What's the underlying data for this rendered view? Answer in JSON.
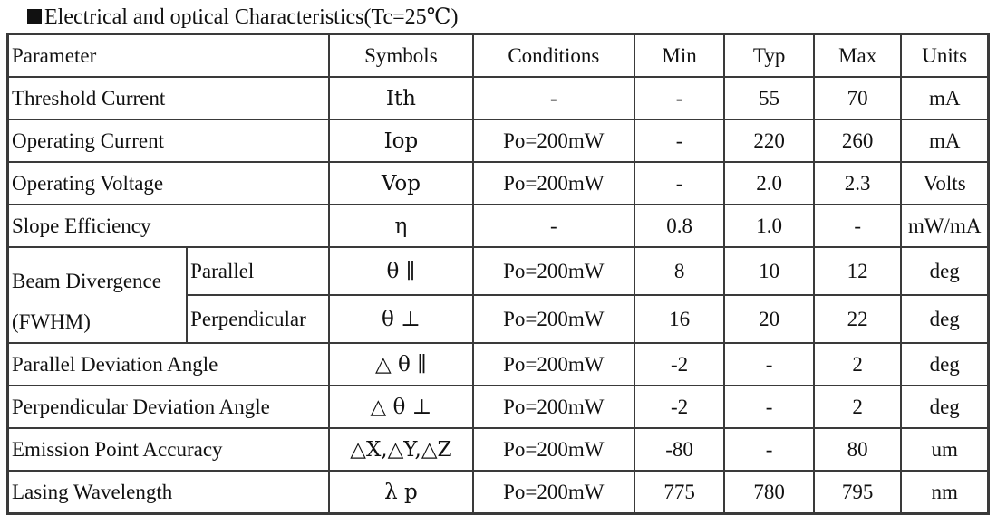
{
  "heading": "Electrical and optical Characteristics(Tc=25℃)",
  "columns": [
    "Parameter",
    "Symbols",
    "Conditions",
    "Min",
    "Typ",
    "Max",
    "Units"
  ],
  "rows": [
    {
      "parameter": "Threshold Current",
      "symbol": "Ith",
      "conditions": "-",
      "min": "-",
      "typ": "55",
      "max": "70",
      "units": "mA"
    },
    {
      "parameter": "Operating Current",
      "symbol": "Iop",
      "conditions": "Po=200mW",
      "min": "-",
      "typ": "220",
      "max": "260",
      "units": "mA"
    },
    {
      "parameter": "Operating Voltage",
      "symbol": "Vop",
      "conditions": "Po=200mW",
      "min": "-",
      "typ": "2.0",
      "max": "2.3",
      "units": "Volts"
    },
    {
      "parameter": "Slope Efficiency",
      "symbol": "η",
      "conditions": "-",
      "min": "0.8",
      "typ": "1.0",
      "max": "-",
      "units": "mW/mA"
    }
  ],
  "beam": {
    "parameter_line1": "Beam Divergence",
    "parameter_line2": "(FWHM)",
    "sub": [
      {
        "label": "Parallel",
        "symbol": "θ ∥",
        "conditions": "Po=200mW",
        "min": "8",
        "typ": "10",
        "max": "12",
        "units": "deg"
      },
      {
        "label": "Perpendicular",
        "symbol": "θ ⊥",
        "conditions": "Po=200mW",
        "min": "16",
        "typ": "20",
        "max": "22",
        "units": "deg"
      }
    ]
  },
  "rows2": [
    {
      "parameter": "Parallel Deviation Angle",
      "symbol": "△ θ ∥",
      "conditions": "Po=200mW",
      "min": "-2",
      "typ": "-",
      "max": "2",
      "units": "deg"
    },
    {
      "parameter": "Perpendicular Deviation Angle",
      "symbol": "△ θ ⊥",
      "conditions": "Po=200mW",
      "min": "-2",
      "typ": "-",
      "max": "2",
      "units": "deg"
    },
    {
      "parameter": "Emission Point Accuracy",
      "symbol": "△X,△Y,△Z",
      "conditions": "Po=200mW",
      "min": "-80",
      "typ": "-",
      "max": "80",
      "units": "um"
    },
    {
      "parameter": "Lasing Wavelength",
      "symbol": "λ p",
      "conditions": "Po=200mW",
      "min": "775",
      "typ": "780",
      "max": "795",
      "units": "nm"
    }
  ]
}
